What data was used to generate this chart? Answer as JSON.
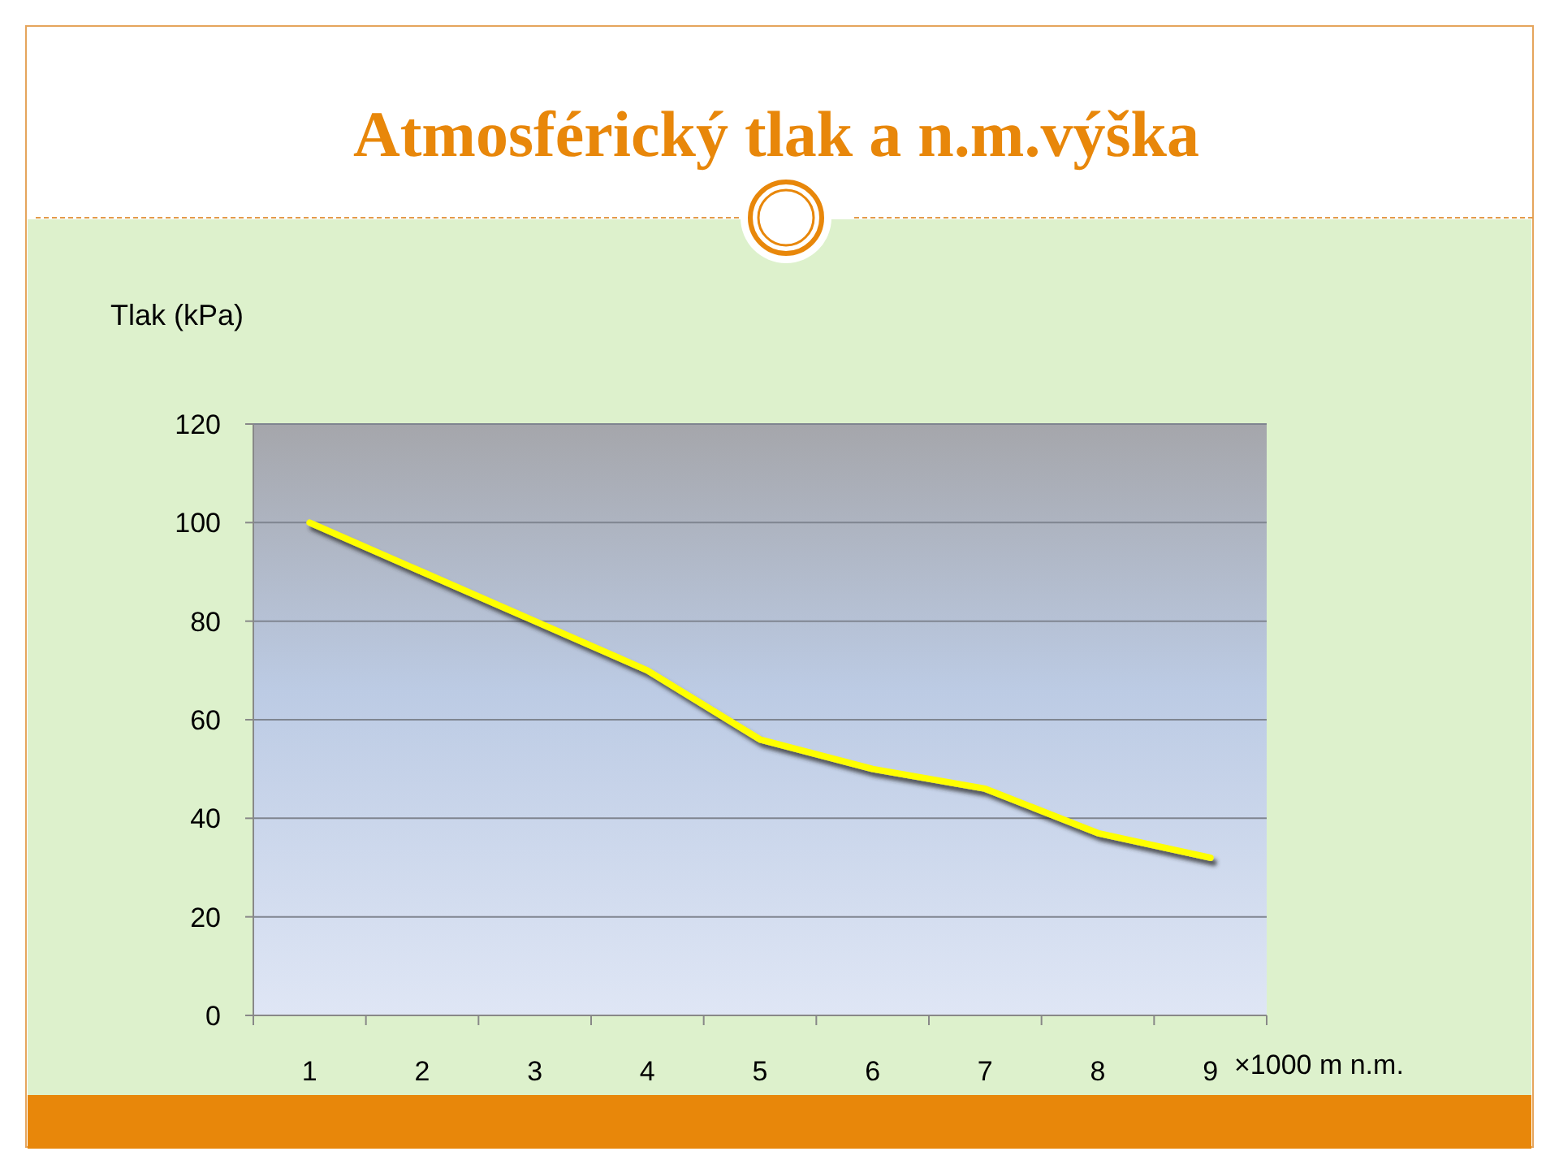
{
  "chart_data": {
    "type": "line",
    "title": "Atmosférický tlak a n.m.výška",
    "ylabel": "Tlak (kPa)",
    "xlabel": "×1000 m n.m.",
    "categories": [
      "1",
      "2",
      "3",
      "4",
      "5",
      "6",
      "7",
      "8",
      "9"
    ],
    "series": [
      {
        "color": "#ffff00",
        "values": [
          100,
          90,
          80,
          70,
          56,
          50,
          46,
          37,
          32
        ]
      }
    ],
    "ylim": [
      0,
      120
    ],
    "yticks": [
      0,
      20,
      40,
      60,
      80,
      100,
      120
    ],
    "grid": "y",
    "marker": "none",
    "line_style": "solid"
  }
}
